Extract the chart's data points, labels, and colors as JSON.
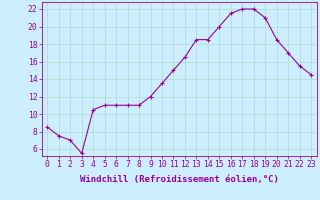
{
  "x": [
    0,
    1,
    2,
    3,
    4,
    5,
    6,
    7,
    8,
    9,
    10,
    11,
    12,
    13,
    14,
    15,
    16,
    17,
    18,
    19,
    20,
    21,
    22,
    23
  ],
  "y": [
    8.5,
    7.5,
    7.0,
    5.5,
    10.5,
    11.0,
    11.0,
    11.0,
    11.0,
    12.0,
    13.5,
    15.0,
    16.5,
    18.5,
    18.5,
    20.0,
    21.5,
    22.0,
    22.0,
    21.0,
    18.5,
    17.0,
    15.5,
    14.5
  ],
  "line_color": "#990099",
  "marker": "+",
  "marker_color": "#990099",
  "bg_color": "#cceeff",
  "grid_color": "#aaddcc",
  "xlabel": "Windchill (Refroidissement éolien,°C)",
  "ylabel_ticks": [
    6,
    8,
    10,
    12,
    14,
    16,
    18,
    20,
    22
  ],
  "ylim": [
    5.2,
    22.8
  ],
  "xlim": [
    -0.5,
    23.5
  ],
  "xlabel_fontsize": 6.5,
  "tick_fontsize": 5.8,
  "label_color": "#990099"
}
